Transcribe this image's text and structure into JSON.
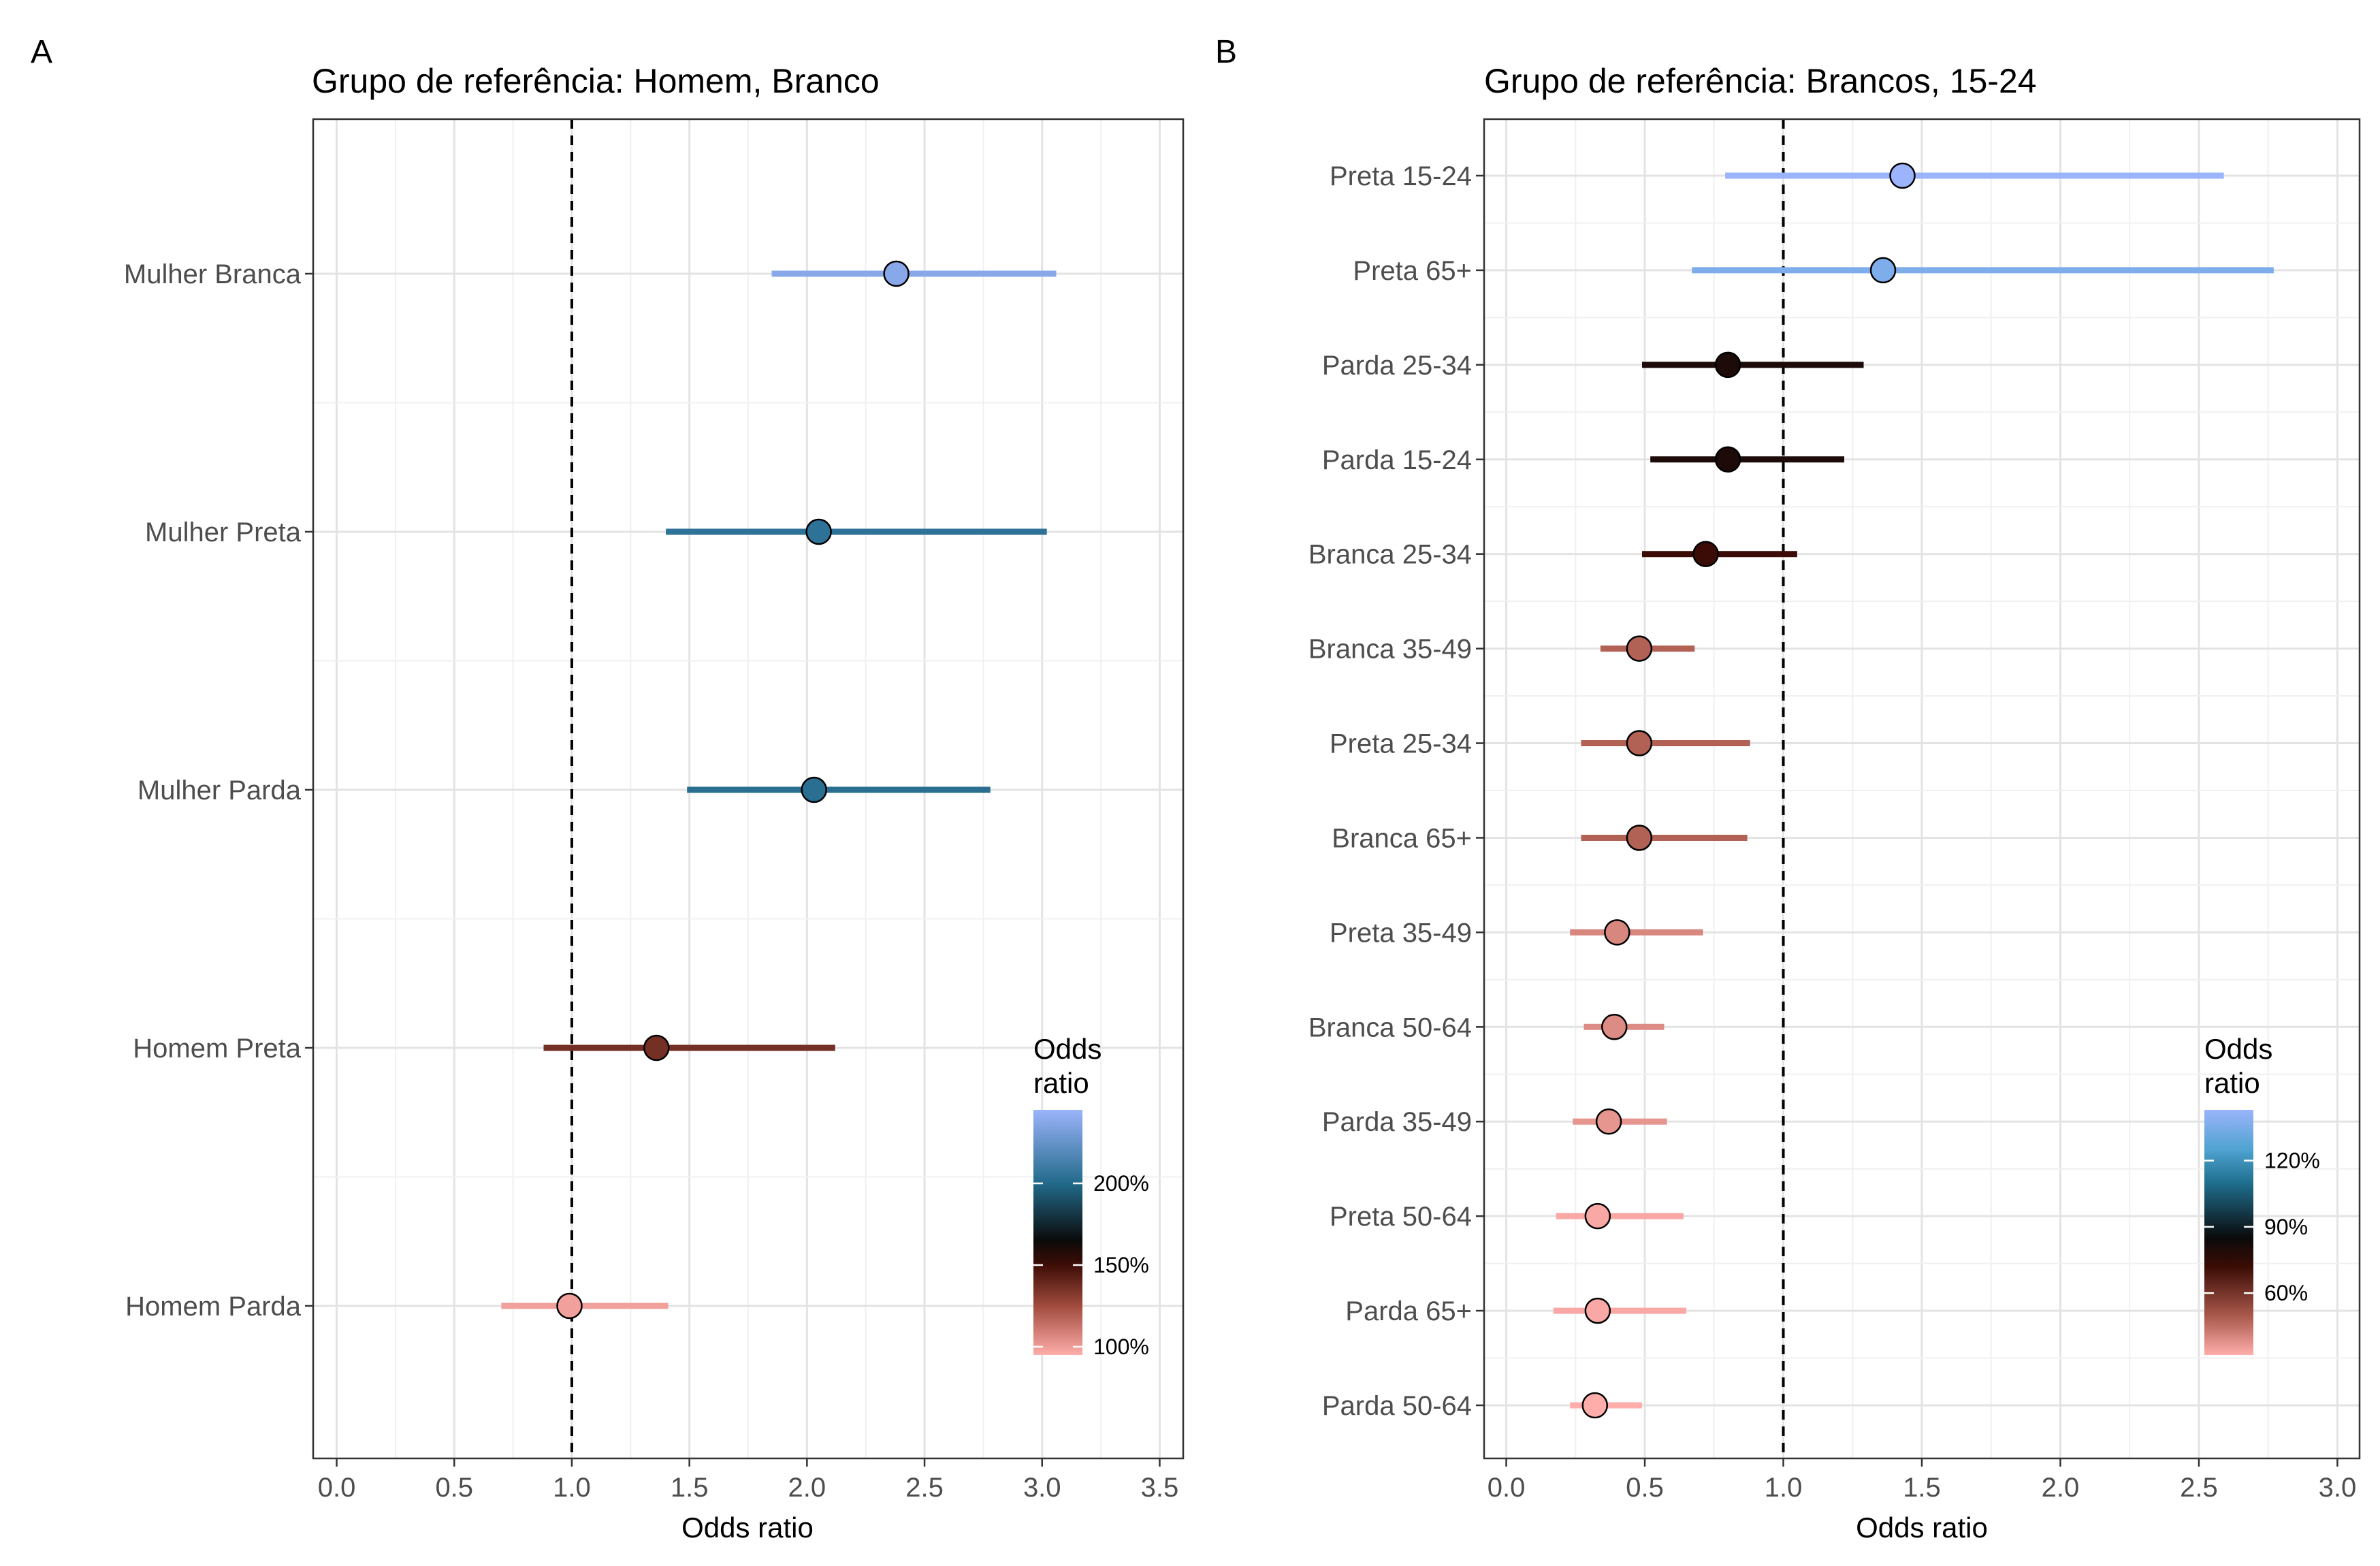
{
  "chart_data": [
    {
      "type": "scatter",
      "tag": "A",
      "title": "Grupo de referência: Homem, Branco",
      "xlabel": "Odds ratio",
      "ylabel": "",
      "xlim": [
        -0.1,
        3.6
      ],
      "xticks": [
        0.0,
        0.5,
        1.0,
        1.5,
        2.0,
        2.5,
        3.0,
        3.5
      ],
      "xtick_labels": [
        "0.0",
        "0.5",
        "1.0",
        "1.5",
        "2.0",
        "2.5",
        "3.0",
        "3.5"
      ],
      "reference_line": 1.0,
      "grid": true,
      "categories": [
        "Mulher Branca",
        "Mulher Preta",
        "Mulher Parda",
        "Homem Preta",
        "Homem Parda"
      ],
      "estimate": [
        2.38,
        2.05,
        2.03,
        1.36,
        0.99
      ],
      "ci_low": [
        1.85,
        1.4,
        1.49,
        0.88,
        0.7
      ],
      "ci_high": [
        3.06,
        3.02,
        2.78,
        2.12,
        1.41
      ],
      "legend": {
        "title_lines": [
          "Odds",
          "ratio"
        ],
        "placement": "bottom-right",
        "range": [
          0.95,
          2.45
        ],
        "tick_values": [
          1.0,
          1.5,
          2.0
        ],
        "tick_labels": [
          "100%",
          "150%",
          "200%"
        ],
        "color_stops": [
          {
            "value": 0.95,
            "color": "#ffadaa"
          },
          {
            "value": 1.25,
            "color": "#a04b3d"
          },
          {
            "value": 1.5,
            "color": "#3d0d06"
          },
          {
            "value": 1.65,
            "color": "#0a0a0a"
          },
          {
            "value": 2.0,
            "color": "#226a8a"
          },
          {
            "value": 2.45,
            "color": "#9bb4fb"
          }
        ]
      }
    },
    {
      "type": "scatter",
      "tag": "B",
      "title": "Grupo de referência: Brancos, 15-24",
      "xlabel": "Odds ratio",
      "ylabel": "",
      "xlim": [
        -0.08,
        3.08
      ],
      "xticks": [
        0.0,
        0.5,
        1.0,
        1.5,
        2.0,
        2.5,
        3.0
      ],
      "xtick_labels": [
        "0.0",
        "0.5",
        "1.0",
        "1.5",
        "2.0",
        "2.5",
        "3.0"
      ],
      "reference_line": 1.0,
      "grid": true,
      "categories": [
        "Preta 15-24",
        "Preta 65+",
        "Parda 25-34",
        "Parda 15-24",
        "Branca 25-34",
        "Branca 35-49",
        "Preta 25-34",
        "Branca 65+",
        "Preta 35-49",
        "Branca 50-64",
        "Parda 35-49",
        "Preta 50-64",
        "Parda 65+",
        "Parda 50-64"
      ],
      "estimate": [
        1.43,
        1.36,
        0.8,
        0.8,
        0.72,
        0.48,
        0.48,
        0.48,
        0.4,
        0.39,
        0.37,
        0.33,
        0.33,
        0.32
      ],
      "ci_low": [
        0.79,
        0.67,
        0.49,
        0.52,
        0.49,
        0.34,
        0.27,
        0.27,
        0.23,
        0.28,
        0.24,
        0.18,
        0.17,
        0.23
      ],
      "ci_high": [
        2.59,
        2.77,
        1.29,
        1.22,
        1.05,
        0.68,
        0.88,
        0.87,
        0.71,
        0.57,
        0.58,
        0.64,
        0.65,
        0.49
      ],
      "legend": {
        "title_lines": [
          "Odds",
          "ratio"
        ],
        "placement": "bottom-right",
        "range": [
          0.32,
          1.43
        ],
        "tick_values": [
          0.6,
          0.9,
          1.2
        ],
        "tick_labels": [
          "60%",
          "90%",
          "120%"
        ],
        "color_stops": [
          {
            "value": 0.32,
            "color": "#ffadaa"
          },
          {
            "value": 0.5,
            "color": "#a8574a"
          },
          {
            "value": 0.72,
            "color": "#3a0c05"
          },
          {
            "value": 0.85,
            "color": "#0a0a0a"
          },
          {
            "value": 1.1,
            "color": "#1f6f8f"
          },
          {
            "value": 1.25,
            "color": "#4fa3d1"
          },
          {
            "value": 1.43,
            "color": "#9bb4fb"
          }
        ]
      }
    }
  ]
}
